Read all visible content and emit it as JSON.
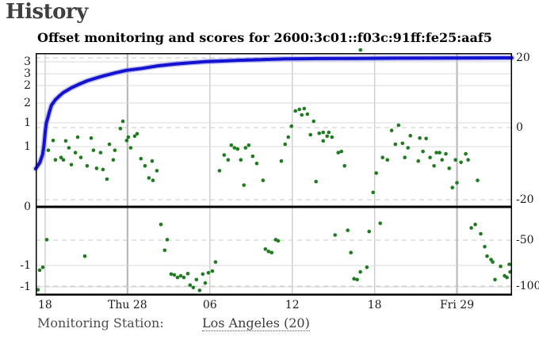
{
  "page": {
    "heading": "History"
  },
  "footer": {
    "label": "Monitoring Station:",
    "station_link": "Los Angeles (20)"
  },
  "colors": {
    "offset_dots": "#1e7b1e",
    "score_line": "#1212d0",
    "score_line_halo": "#8585ea",
    "grid_solid": "#d9d9d9",
    "grid_dashed": "#c8c8c8",
    "grid_vertical": "#cdcdcd",
    "grid_vertical_major": "#b9b9b9",
    "zero_line": "#000000",
    "border": "#000000"
  },
  "chart_data": {
    "type": "scatter",
    "title": "Offset monitoring and scores for 2600:3c01::f03c:91ff:fe25:aaf5",
    "x_axis": {
      "unit": "hours",
      "range_hours": 34.7,
      "ticks": [
        {
          "h": 0.69,
          "label": "18",
          "major": false
        },
        {
          "h": 6.69,
          "label": "Thu 28",
          "major": true
        },
        {
          "h": 12.69,
          "label": "06",
          "major": false
        },
        {
          "h": 18.69,
          "label": "12",
          "major": false
        },
        {
          "h": 24.69,
          "label": "18",
          "major": false
        },
        {
          "h": 30.69,
          "label": "Fri 29",
          "major": true
        }
      ]
    },
    "y_offset_axis": {
      "side": "left",
      "ticks": [
        {
          "v": 3,
          "label": "3"
        },
        {
          "v": 2.5,
          "label": "3"
        },
        {
          "v": 2,
          "label": "2"
        },
        {
          "v": 1.5,
          "label": "2"
        },
        {
          "v": 1,
          "label": "1"
        },
        {
          "v": 0.5,
          "label": "1"
        },
        {
          "v": 0,
          "label": "0"
        },
        {
          "v": -0.5,
          "label": "-1"
        },
        {
          "v": -1,
          "label": "-1"
        }
      ]
    },
    "y_score_axis": {
      "side": "right",
      "ticks": [
        {
          "s": 20,
          "label": "20"
        },
        {
          "s": 0,
          "label": "0"
        },
        {
          "s": -20,
          "label": "-20"
        },
        {
          "s": -50,
          "label": "-50"
        },
        {
          "s": -100,
          "label": "-100"
        }
      ]
    },
    "zero_line": true,
    "series": [
      {
        "name": "offset",
        "type": "scatter",
        "points": [
          [
            0.92,
            0.47
          ],
          [
            1.27,
            0.63
          ],
          [
            1.44,
            0.39
          ],
          [
            1.85,
            0.41
          ],
          [
            2.02,
            0.39
          ],
          [
            2.19,
            0.62
          ],
          [
            2.42,
            0.49
          ],
          [
            2.6,
            0.35
          ],
          [
            2.89,
            0.45
          ],
          [
            3.06,
            0.7
          ],
          [
            3.29,
            0.41
          ],
          [
            3.75,
            0.34
          ],
          [
            4.04,
            0.68
          ],
          [
            4.21,
            0.47
          ],
          [
            4.44,
            0.32
          ],
          [
            4.73,
            0.45
          ],
          [
            4.9,
            0.31
          ],
          [
            5.19,
            0.23
          ],
          [
            5.37,
            0.55
          ],
          [
            5.65,
            0.39
          ],
          [
            5.77,
            0.47
          ],
          [
            6.17,
            0.88
          ],
          [
            6.35,
            1.04
          ],
          [
            6.63,
            0.63
          ],
          [
            6.75,
            0.7
          ],
          [
            6.92,
            0.49
          ],
          [
            7.21,
            0.72
          ],
          [
            7.39,
            0.77
          ],
          [
            7.67,
            0.4
          ],
          [
            7.96,
            0.34
          ],
          [
            8.25,
            0.24
          ],
          [
            8.48,
            0.38
          ],
          [
            8.54,
            0.22
          ],
          [
            8.83,
            0.3
          ],
          [
            13.39,
            0.3
          ],
          [
            13.73,
            0.43
          ],
          [
            14.02,
            0.39
          ],
          [
            14.25,
            0.53
          ],
          [
            14.48,
            0.49
          ],
          [
            14.71,
            0.48
          ],
          [
            14.94,
            0.39
          ],
          [
            15.17,
            0.18
          ],
          [
            15.29,
            0.49
          ],
          [
            15.52,
            0.53
          ],
          [
            15.81,
            0.42
          ],
          [
            16.1,
            0.36
          ],
          [
            16.56,
            0.22
          ],
          [
            17.89,
            0.38
          ],
          [
            18.17,
            0.55
          ],
          [
            18.4,
            0.7
          ],
          [
            18.63,
            0.93
          ],
          [
            18.92,
            1.3
          ],
          [
            19.21,
            1.34
          ],
          [
            19.38,
            1.2
          ],
          [
            19.56,
            1.36
          ],
          [
            19.79,
            1.22
          ],
          [
            20.02,
            0.75
          ],
          [
            20.25,
            1.04
          ],
          [
            20.42,
            0.21
          ],
          [
            20.65,
            0.78
          ],
          [
            20.94,
            0.8
          ],
          [
            20.94,
            0.62
          ],
          [
            21.23,
            0.72
          ],
          [
            21.35,
            0.8
          ],
          [
            21.58,
            0.7
          ],
          [
            22.04,
            0.45
          ],
          [
            22.27,
            0.46
          ],
          [
            22.5,
            0.34
          ],
          [
            23.66,
            3.5
          ],
          [
            24.58,
            0.12
          ],
          [
            24.81,
            0.28
          ],
          [
            25.27,
            0.41
          ],
          [
            25.62,
            0.39
          ],
          [
            25.93,
            0.84
          ],
          [
            26.2,
            0.55
          ],
          [
            26.43,
            0.95
          ],
          [
            26.72,
            0.57
          ],
          [
            26.89,
            0.41
          ],
          [
            27.12,
            0.49
          ],
          [
            27.29,
            0.73
          ],
          [
            27.87,
            0.38
          ],
          [
            27.98,
            0.68
          ],
          [
            28.21,
            0.46
          ],
          [
            28.44,
            0.67
          ],
          [
            28.73,
            0.41
          ],
          [
            29.02,
            0.34
          ],
          [
            29.19,
            0.45
          ],
          [
            29.42,
            0.45
          ],
          [
            29.6,
            0.39
          ],
          [
            29.88,
            0.44
          ],
          [
            30.12,
            0.32
          ],
          [
            30.35,
            0.16
          ],
          [
            30.58,
            0.39
          ],
          [
            30.69,
            0.2
          ],
          [
            30.98,
            0.37
          ],
          [
            31.33,
            0.44
          ],
          [
            31.5,
            0.39
          ],
          [
            32.19,
            0.22
          ],
          [
            0.17,
            -1.09
          ],
          [
            0.29,
            -0.61
          ],
          [
            0.52,
            -0.54
          ],
          [
            0.81,
            -0.28
          ],
          [
            3.58,
            -0.42
          ],
          [
            9.12,
            -0.15
          ],
          [
            9.4,
            -0.37
          ],
          [
            9.58,
            -0.28
          ],
          [
            9.87,
            -0.7
          ],
          [
            10.1,
            -0.72
          ],
          [
            10.33,
            -0.78
          ],
          [
            10.56,
            -0.74
          ],
          [
            10.79,
            -0.78
          ],
          [
            11.08,
            -0.69
          ],
          [
            11.25,
            -0.96
          ],
          [
            11.48,
            -1.02
          ],
          [
            11.71,
            -0.83
          ],
          [
            11.94,
            -1.11
          ],
          [
            12.17,
            -0.7
          ],
          [
            12.35,
            -0.91
          ],
          [
            12.58,
            -0.67
          ],
          [
            12.87,
            -0.63
          ],
          [
            13.1,
            -0.47
          ],
          [
            16.73,
            -0.36
          ],
          [
            16.96,
            -0.38
          ],
          [
            17.19,
            -0.39
          ],
          [
            17.48,
            -0.28
          ],
          [
            17.66,
            -0.29
          ],
          [
            21.81,
            -0.24
          ],
          [
            22.73,
            -0.2
          ],
          [
            22.96,
            -0.39
          ],
          [
            23.19,
            -0.81
          ],
          [
            23.42,
            -0.83
          ],
          [
            23.65,
            -0.65
          ],
          [
            24.12,
            -0.54
          ],
          [
            24.29,
            -0.21
          ],
          [
            25.1,
            -0.14
          ],
          [
            31.73,
            -0.18
          ],
          [
            32.02,
            -0.15
          ],
          [
            32.42,
            -0.23
          ],
          [
            32.71,
            -0.34
          ],
          [
            32.88,
            -0.42
          ],
          [
            33.17,
            -0.45
          ],
          [
            33.29,
            -0.47
          ],
          [
            33.46,
            -0.83
          ],
          [
            33.87,
            -0.52
          ],
          [
            34.16,
            -0.74
          ],
          [
            34.33,
            -0.78
          ],
          [
            34.5,
            -0.49
          ],
          [
            34.56,
            -0.65
          ]
        ]
      },
      {
        "name": "score",
        "type": "line",
        "points": [
          [
            0,
            -11.4
          ],
          [
            0.3,
            -9.7
          ],
          [
            0.5,
            -7.5
          ],
          [
            0.6,
            -5
          ],
          [
            0.65,
            -3
          ],
          [
            0.7,
            -1
          ],
          [
            0.78,
            1.4
          ],
          [
            0.9,
            3
          ],
          [
            1.0,
            4.5
          ],
          [
            1.15,
            6.4
          ],
          [
            1.44,
            8
          ],
          [
            1.73,
            9.1
          ],
          [
            2.0,
            10
          ],
          [
            2.6,
            11.4
          ],
          [
            3.2,
            12.5
          ],
          [
            3.75,
            13.4
          ],
          [
            4.3,
            14.1
          ],
          [
            4.9,
            14.8
          ],
          [
            5.8,
            15.7
          ],
          [
            6.6,
            16.4
          ],
          [
            7.8,
            17
          ],
          [
            8.9,
            17.7
          ],
          [
            10.1,
            18.2
          ],
          [
            11.25,
            18.6
          ],
          [
            12.4,
            18.9
          ],
          [
            13.6,
            19.1
          ],
          [
            14.7,
            19.3
          ],
          [
            16.4,
            19.5
          ],
          [
            18.2,
            19.7
          ],
          [
            20.5,
            19.8
          ],
          [
            23.4,
            19.85
          ],
          [
            26.3,
            19.9
          ],
          [
            29.2,
            19.95
          ],
          [
            34.68,
            20
          ]
        ]
      }
    ]
  }
}
